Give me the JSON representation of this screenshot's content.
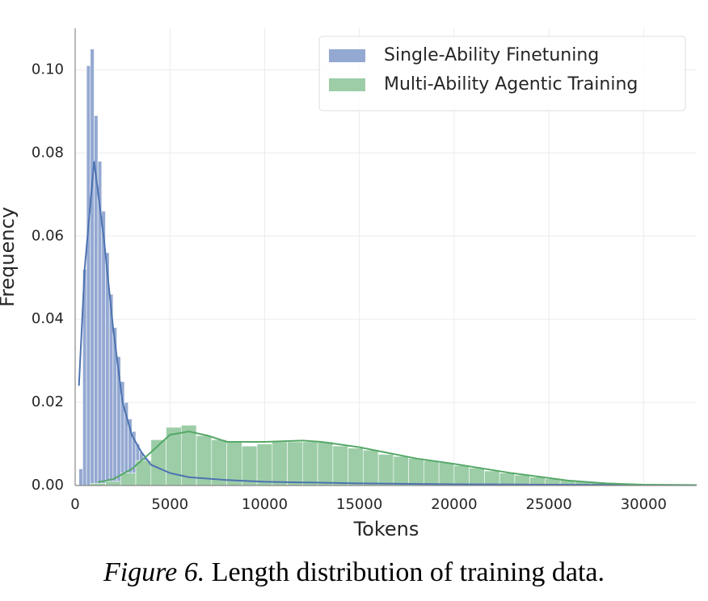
{
  "chart_data": {
    "type": "histogram",
    "xlabel": "Tokens",
    "ylabel": "Frequency",
    "xlim": [
      0,
      32800
    ],
    "ylim": [
      0,
      0.11
    ],
    "xticks": [
      0,
      5000,
      10000,
      15000,
      20000,
      25000,
      30000
    ],
    "yticks": [
      {
        "value": 0,
        "label": "0.00"
      },
      0.02,
      0.04,
      0.06,
      0.08,
      {
        "value": 0.1,
        "label": "0.10"
      }
    ],
    "grid": true,
    "legend": "upper right",
    "series": [
      {
        "name": "Single-Ability Finetuning",
        "color": "#4c72b0",
        "bar_color": "#94a9d2",
        "bins": [
          200,
          400,
          600,
          800,
          1000,
          1200,
          1400,
          1600,
          1800,
          2000,
          2200,
          2400,
          2600,
          2800,
          3000,
          3200,
          3400,
          3600,
          3800,
          4000,
          4200,
          4400,
          4600,
          4800,
          5000,
          5200,
          5400,
          5600,
          5800,
          6000,
          6200,
          6400,
          6600,
          6800,
          7000,
          7200,
          7400,
          7600,
          7800,
          8000,
          8200
        ],
        "counts": [
          0.004,
          0.052,
          0.101,
          0.105,
          0.089,
          0.078,
          0.066,
          0.056,
          0.046,
          0.038,
          0.031,
          0.025,
          0.02,
          0.016,
          0.013,
          0.01,
          0.008,
          0.0065,
          0.005,
          0.004,
          0.0035,
          0.003,
          0.0025,
          0.002,
          0.0018,
          0.0016,
          0.0015,
          0.0014,
          0.0013,
          0.0012,
          0.0011,
          0.001,
          0.001,
          0.0009,
          0.0009,
          0.0008,
          0.0008,
          0.0007,
          0.0007,
          0.0006
        ],
        "kde": {
          "x": [
            200,
            500,
            1000,
            1500,
            2000,
            2500,
            3000,
            3500,
            4000,
            5000,
            6000,
            8000,
            10000,
            15000,
            20000,
            25000,
            32800
          ],
          "values": [
            0.024,
            0.052,
            0.078,
            0.06,
            0.038,
            0.02,
            0.012,
            0.008,
            0.005,
            0.003,
            0.002,
            0.0013,
            0.0009,
            0.0005,
            0.0003,
            0.0002,
            0.0001
          ]
        }
      },
      {
        "name": "Multi-Ability Agentic Training",
        "color": "#55a868",
        "bar_color": "#9ccda7",
        "bins": [
          800,
          1600,
          2400,
          3200,
          4000,
          4800,
          5600,
          6400,
          7200,
          8000,
          8800,
          9600,
          10400,
          11200,
          12000,
          12800,
          13600,
          14400,
          15200,
          16000,
          16800,
          17600,
          18400,
          19200,
          20000,
          20800,
          21600,
          22400,
          23200,
          24000,
          24800,
          25600,
          26400,
          27200,
          28000,
          28800,
          29600,
          30400,
          31200,
          32000,
          32800
        ],
        "counts": [
          0.0005,
          0.001,
          0.003,
          0.006,
          0.011,
          0.014,
          0.0145,
          0.012,
          0.011,
          0.0105,
          0.0095,
          0.01,
          0.0105,
          0.0105,
          0.0105,
          0.0105,
          0.0095,
          0.009,
          0.0085,
          0.0075,
          0.007,
          0.0065,
          0.006,
          0.0055,
          0.0048,
          0.0042,
          0.0035,
          0.003,
          0.0025,
          0.002,
          0.0016,
          0.0013,
          0.001,
          0.0008,
          0.0006,
          0.0005,
          0.0004,
          0.0003,
          0.0002,
          0.0002
        ],
        "kde": {
          "x": [
            1200,
            2000,
            3000,
            4000,
            5000,
            6000,
            7000,
            8000,
            10000,
            12000,
            13000,
            15000,
            18000,
            20000,
            23000,
            26000,
            28000,
            30000,
            32800
          ],
          "values": [
            0.0008,
            0.0015,
            0.004,
            0.008,
            0.0122,
            0.013,
            0.012,
            0.0105,
            0.0105,
            0.0108,
            0.0105,
            0.0092,
            0.0065,
            0.0052,
            0.003,
            0.0012,
            0.0005,
            0.0002,
            0.0001
          ]
        }
      }
    ]
  },
  "caption": {
    "label": "Figure 6.",
    "text": "Length distribution of training data."
  }
}
